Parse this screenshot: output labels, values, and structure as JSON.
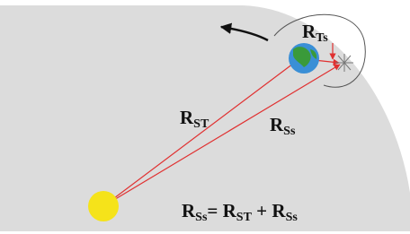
{
  "labels": [
    {
      "symbol": "R",
      "subscript": "Ts"
    },
    {
      "symbol": "R",
      "subscript": "ST"
    },
    {
      "symbol": "R",
      "subscript": "Ss"
    }
  ],
  "equation": [
    {
      "symbol": "R",
      "subscript": "Ss"
    },
    {
      "text": "= "
    },
    {
      "symbol": "R",
      "subscript": "ST"
    },
    {
      "text": " + "
    },
    {
      "symbol": "R",
      "subscript": "Ss"
    }
  ]
}
